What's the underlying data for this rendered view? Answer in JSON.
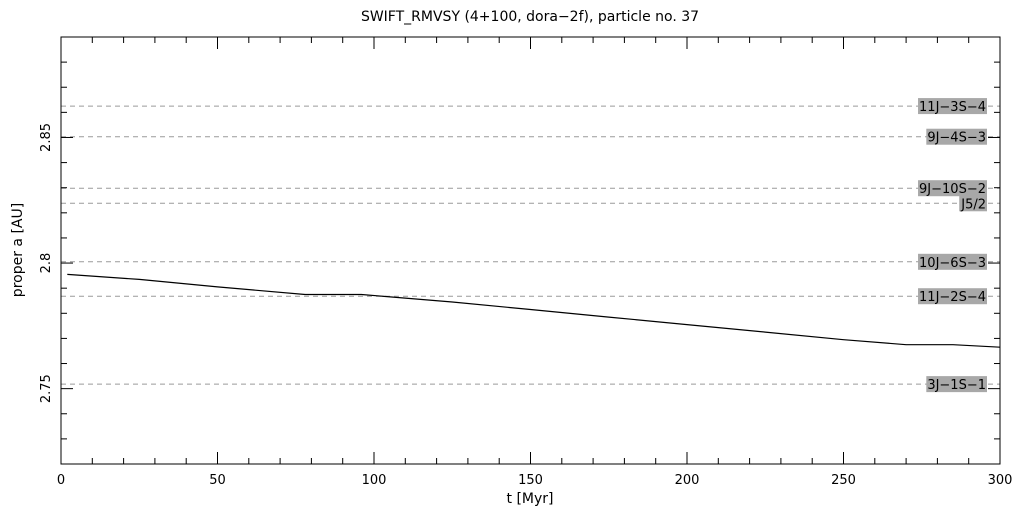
{
  "chart_data": {
    "type": "line",
    "title": "SWIFT_RMVSY (4+100, dora−2f), particle no. 37",
    "xlabel": "t [Myr]",
    "ylabel": "proper a [AU]",
    "xlim": [
      0,
      300
    ],
    "ylim": [
      2.72,
      2.89
    ],
    "xticks": [
      0,
      50,
      100,
      150,
      200,
      250,
      300
    ],
    "xtick_labels": [
      "0",
      "50",
      "100",
      "150",
      "200",
      "250",
      "300"
    ],
    "yticks": [
      2.75,
      2.8,
      2.85
    ],
    "ytick_labels": [
      "2.75",
      "2.8",
      "2.85"
    ],
    "grid": false,
    "series": [
      {
        "x": [
          2,
          25,
          50,
          78,
          96,
          125,
          150,
          175,
          200,
          225,
          250,
          270,
          285,
          300
        ],
        "y": [
          2.7955,
          2.7935,
          2.7905,
          2.7875,
          2.7875,
          2.7845,
          2.7815,
          2.7785,
          2.7755,
          2.7725,
          2.7695,
          2.7675,
          2.7675,
          2.7665
        ]
      }
    ],
    "resonances": [
      {
        "label": "11J−3S−4",
        "a": 2.8625
      },
      {
        "label": "9J−4S−3",
        "a": 2.8503
      },
      {
        "label": "9J−10S−2",
        "a": 2.8298
      },
      {
        "label": "J5/2",
        "a": 2.8238
      },
      {
        "label": "10J−6S−3",
        "a": 2.8005
      },
      {
        "label": "11J−2S−4",
        "a": 2.7868
      },
      {
        "label": "3J−1S−1",
        "a": 2.7518
      }
    ]
  }
}
